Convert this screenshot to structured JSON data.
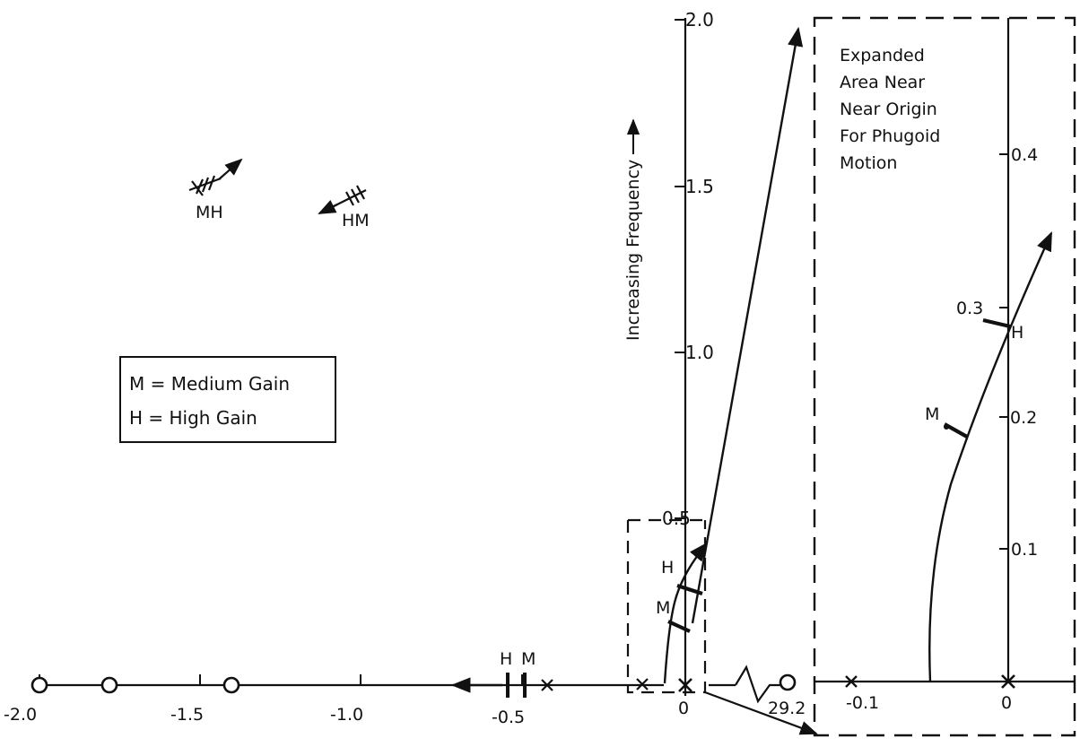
{
  "figure": {
    "legend": {
      "line1": "M = Medium Gain",
      "line2": "H = High Gain"
    },
    "y_axis_title": "Increasing Frequency",
    "main_x_ticks": [
      "-2.0",
      "-1.5",
      "-1.0",
      "-0.5",
      "0"
    ],
    "main_y_ticks": [
      "2.0",
      "1.5",
      "1.0",
      "0.5"
    ],
    "far_zero_label": "29.2",
    "branch_labels": {
      "complex_pole_left": "MH",
      "complex_pole_right": "HM",
      "real_axis_H": "H",
      "real_axis_M": "M",
      "main_branch_H": "H",
      "main_branch_M": "M"
    },
    "inset": {
      "note_lines": [
        "Expanded",
        "Area Near",
        "Near Origin",
        "For Phugoid",
        "Motion"
      ],
      "x_ticks": [
        "-0.1",
        "0"
      ],
      "y_ticks": [
        "0.4",
        "0.3",
        "0.2",
        "0.1"
      ],
      "gain_H": "H",
      "gain_M": "M"
    }
  }
}
